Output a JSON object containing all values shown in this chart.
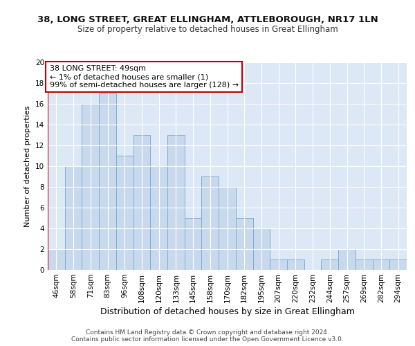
{
  "title1": "38, LONG STREET, GREAT ELLINGHAM, ATTLEBOROUGH, NR17 1LN",
  "title2": "Size of property relative to detached houses in Great Ellingham",
  "xlabel": "Distribution of detached houses by size in Great Ellingham",
  "ylabel": "Number of detached properties",
  "categories": [
    "46sqm",
    "58sqm",
    "71sqm",
    "83sqm",
    "96sqm",
    "108sqm",
    "120sqm",
    "133sqm",
    "145sqm",
    "158sqm",
    "170sqm",
    "182sqm",
    "195sqm",
    "207sqm",
    "220sqm",
    "232sqm",
    "244sqm",
    "257sqm",
    "269sqm",
    "282sqm",
    "294sqm"
  ],
  "values": [
    2,
    10,
    16,
    17,
    11,
    13,
    10,
    13,
    5,
    9,
    8,
    5,
    4,
    1,
    1,
    0,
    1,
    2,
    1,
    1,
    1
  ],
  "bar_color": "#c9d9ed",
  "bar_edge_color": "#7aadd4",
  "annotation_box_color": "#c00000",
  "annotation_text": "38 LONG STREET: 49sqm\n← 1% of detached houses are smaller (1)\n99% of semi-detached houses are larger (128) →",
  "vline_color": "#c00000",
  "ylim": [
    0,
    20
  ],
  "yticks": [
    0,
    2,
    4,
    6,
    8,
    10,
    12,
    14,
    16,
    18,
    20
  ],
  "bg_color": "#dce8f5",
  "grid_color": "#ffffff",
  "footer": "Contains HM Land Registry data © Crown copyright and database right 2024.\nContains public sector information licensed under the Open Government Licence v3.0.",
  "title1_fontsize": 9.5,
  "title2_fontsize": 8.5,
  "xlabel_fontsize": 9,
  "ylabel_fontsize": 8,
  "tick_fontsize": 7.5,
  "annotation_fontsize": 8
}
